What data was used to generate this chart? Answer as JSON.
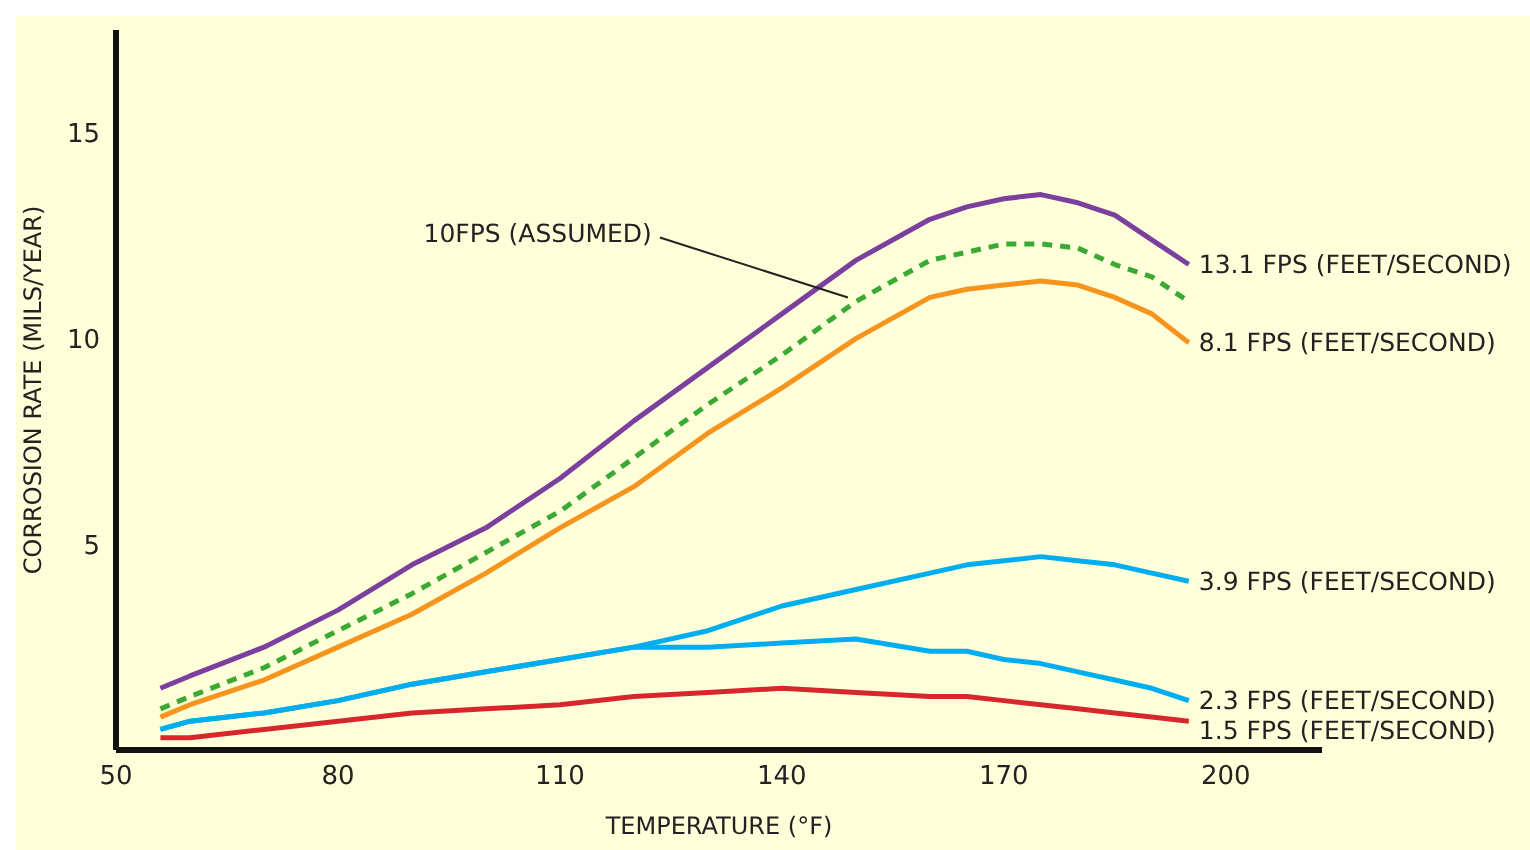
{
  "chart_data": {
    "type": "line",
    "xlabel": "TEMPERATURE (°F)",
    "ylabel": "CORROSION RATE (MILS/YEAR)",
    "xlim": [
      50,
      213
    ],
    "xticks": [
      50,
      80,
      110,
      140,
      170,
      200
    ],
    "ylim": [
      0,
      17.5
    ],
    "yticks": [
      5,
      10,
      15
    ],
    "marker": "none",
    "x": [
      56,
      60,
      70,
      80,
      90,
      100,
      110,
      120,
      130,
      140,
      150,
      160,
      165,
      170,
      175,
      180,
      185,
      190,
      195
    ],
    "series": [
      {
        "name": "13.1 FPS (FEET/SECOND)",
        "color": "#7b3f9e",
        "line_style": "solid",
        "values": [
          1.5,
          1.8,
          2.5,
          3.4,
          4.5,
          5.4,
          6.6,
          8.0,
          9.3,
          10.6,
          11.9,
          12.9,
          13.2,
          13.4,
          13.5,
          13.3,
          13.0,
          12.4,
          11.8
        ]
      },
      {
        "name": "10FPS (ASSUMED)",
        "color": "#3aaa35",
        "line_style": "dashed",
        "values": [
          1.0,
          1.3,
          2.0,
          2.9,
          3.8,
          4.8,
          5.8,
          7.1,
          8.4,
          9.6,
          10.9,
          11.9,
          12.1,
          12.3,
          12.3,
          12.2,
          11.8,
          11.5,
          10.9
        ]
      },
      {
        "name": "8.1 FPS (FEET/SECOND)",
        "color": "#f7941d",
        "line_style": "solid",
        "values": [
          0.8,
          1.1,
          1.7,
          2.5,
          3.3,
          4.3,
          5.4,
          6.4,
          7.7,
          8.8,
          10.0,
          11.0,
          11.2,
          11.3,
          11.4,
          11.3,
          11.0,
          10.6,
          9.9
        ]
      },
      {
        "name": "3.9 FPS (FEET/SECOND)",
        "color": "#00aeef",
        "line_style": "solid",
        "values": [
          0.5,
          0.7,
          0.9,
          1.2,
          1.6,
          1.9,
          2.2,
          2.5,
          2.9,
          3.5,
          3.9,
          4.3,
          4.5,
          4.6,
          4.7,
          4.6,
          4.5,
          4.3,
          4.1
        ]
      },
      {
        "name": "2.3 FPS (FEET/SECOND)",
        "color": "#00aeef",
        "line_style": "solid",
        "values": [
          0.5,
          0.7,
          0.9,
          1.2,
          1.6,
          1.9,
          2.2,
          2.5,
          2.5,
          2.6,
          2.7,
          2.4,
          2.4,
          2.2,
          2.1,
          1.9,
          1.7,
          1.5,
          1.2
        ]
      },
      {
        "name": "1.5 FPS (FEET/SECOND)",
        "color": "#d7262c",
        "line_style": "solid",
        "values": [
          0.3,
          0.3,
          0.5,
          0.7,
          0.9,
          1.0,
          1.1,
          1.3,
          1.4,
          1.5,
          1.4,
          1.3,
          1.3,
          1.2,
          1.1,
          1.0,
          0.9,
          0.8,
          0.7
        ]
      }
    ]
  }
}
